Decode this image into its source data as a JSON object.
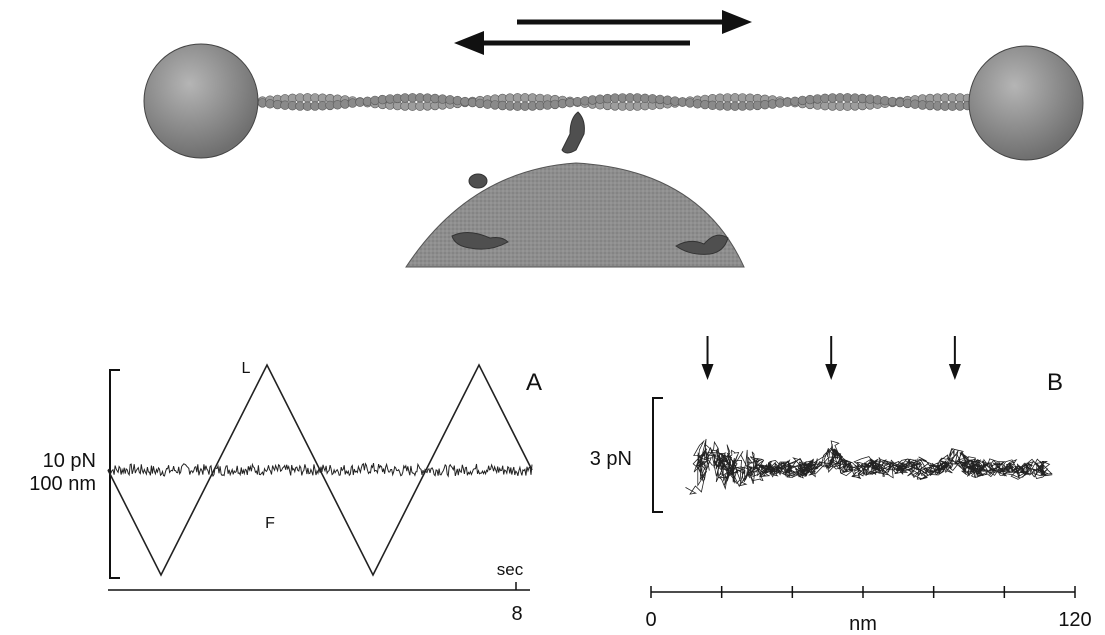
{
  "schematic": {
    "description_visible": false,
    "colors": {
      "bead": "#8c8c8c",
      "filament": "#9a9a9a",
      "pedestal": "#8a8a8a",
      "motor": "#555555",
      "arrow": "#111111"
    }
  },
  "chart_data": [
    {
      "type": "line",
      "panel_label": "A",
      "title": "",
      "xlabel": "",
      "ylabel": "",
      "scale_bar_labels": [
        "10 pN",
        "100 nm"
      ],
      "x_end_label": "sec",
      "x_end_value": "8",
      "xlim": [
        0,
        8
      ],
      "series": [
        {
          "name": "L",
          "x": [
            0,
            1,
            3,
            5,
            7,
            8
          ],
          "y": [
            0,
            -100,
            100,
            -100,
            100,
            0
          ]
        },
        {
          "name": "F",
          "x": [
            0,
            0.5,
            1,
            1.5,
            2,
            2.5,
            3,
            3.5,
            4,
            4.5,
            5,
            5.5,
            6,
            6.5,
            7,
            7.5,
            8
          ],
          "y": [
            0,
            1,
            -2,
            2,
            -1,
            2,
            0,
            -1,
            1,
            0,
            3,
            -2,
            1,
            -1,
            2,
            0,
            0
          ]
        }
      ]
    },
    {
      "type": "scatter",
      "panel_label": "B",
      "title": "",
      "xlabel": "nm",
      "ylabel": "",
      "scale_bar_label": "3 pN",
      "xlim": [
        0,
        120
      ],
      "x_tick_labels": [
        "0",
        "120"
      ],
      "x_ticks": [
        0,
        20,
        40,
        60,
        80,
        100,
        120
      ],
      "arrow_markers_x": [
        16,
        51,
        86
      ],
      "trace_x_range": [
        12,
        112
      ]
    }
  ]
}
